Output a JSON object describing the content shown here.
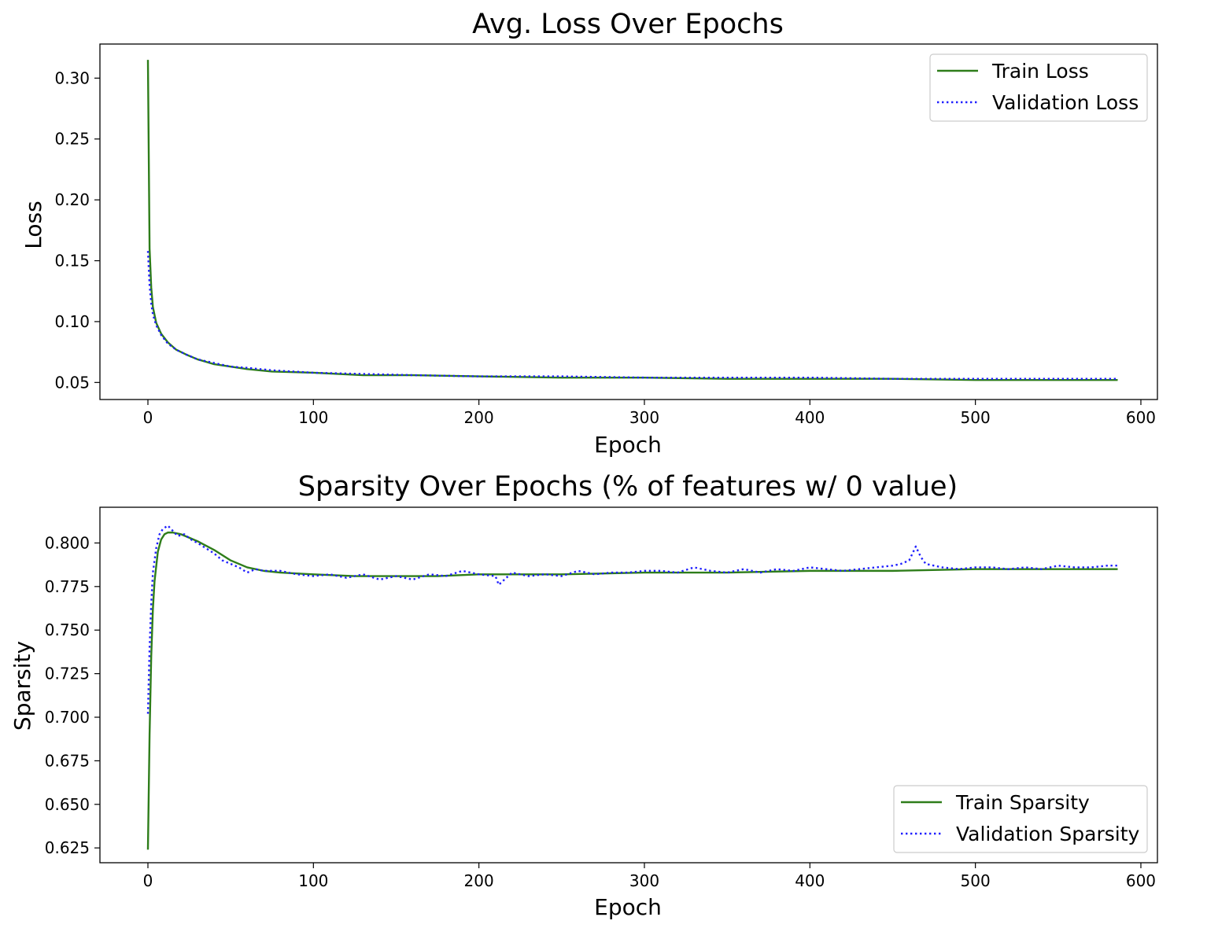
{
  "chart_data": [
    {
      "type": "line",
      "title": "Avg. Loss Over Epochs",
      "xlabel": "Epoch",
      "ylabel": "Loss",
      "xlim": [
        -29,
        610
      ],
      "ylim": [
        0.036,
        0.328
      ],
      "xticks": [
        0,
        100,
        200,
        300,
        400,
        500,
        600
      ],
      "yticks": [
        0.05,
        0.1,
        0.15,
        0.2,
        0.25,
        0.3
      ],
      "ytick_labels": [
        "0.05",
        "0.10",
        "0.15",
        "0.20",
        "0.25",
        "0.30"
      ],
      "legend_position": "upper right",
      "grid": false,
      "series": [
        {
          "name": "Train Loss",
          "style": "solid",
          "color": "#2e7d1a",
          "x": [
            0,
            1,
            2,
            3,
            5,
            8,
            12,
            17,
            23,
            30,
            40,
            50,
            60,
            75,
            100,
            130,
            160,
            200,
            250,
            300,
            350,
            400,
            450,
            500,
            550,
            586
          ],
          "y": [
            0.315,
            0.16,
            0.128,
            0.112,
            0.099,
            0.09,
            0.083,
            0.077,
            0.073,
            0.069,
            0.065,
            0.063,
            0.061,
            0.059,
            0.058,
            0.056,
            0.056,
            0.055,
            0.054,
            0.054,
            0.053,
            0.053,
            0.053,
            0.052,
            0.052,
            0.052
          ]
        },
        {
          "name": "Validation Loss",
          "style": "dotted",
          "color": "#1f1fff",
          "x": [
            0,
            1,
            2,
            3,
            5,
            8,
            12,
            17,
            23,
            30,
            40,
            50,
            60,
            75,
            100,
            130,
            160,
            200,
            250,
            300,
            350,
            400,
            450,
            500,
            550,
            586
          ],
          "y": [
            0.158,
            0.13,
            0.115,
            0.106,
            0.097,
            0.089,
            0.082,
            0.077,
            0.073,
            0.069,
            0.066,
            0.063,
            0.062,
            0.06,
            0.058,
            0.057,
            0.056,
            0.055,
            0.055,
            0.054,
            0.054,
            0.054,
            0.053,
            0.053,
            0.053,
            0.053
          ]
        }
      ]
    },
    {
      "type": "line",
      "title": "Sparsity Over Epochs (% of features w/ 0 value)",
      "xlabel": "Epoch",
      "ylabel": "Sparsity",
      "xlim": [
        -29,
        610
      ],
      "ylim": [
        0.6165,
        0.8205
      ],
      "xticks": [
        0,
        100,
        200,
        300,
        400,
        500,
        600
      ],
      "yticks": [
        0.625,
        0.65,
        0.675,
        0.7,
        0.725,
        0.75,
        0.775,
        0.8
      ],
      "ytick_labels": [
        "0.625",
        "0.650",
        "0.675",
        "0.700",
        "0.725",
        "0.750",
        "0.775",
        "0.800"
      ],
      "legend_position": "lower right",
      "grid": false,
      "series": [
        {
          "name": "Train Sparsity",
          "style": "solid",
          "color": "#2e7d1a",
          "x": [
            0,
            1,
            2,
            3,
            4,
            6,
            8,
            10,
            12,
            15,
            20,
            25,
            30,
            40,
            50,
            60,
            70,
            80,
            100,
            125,
            150,
            175,
            200,
            250,
            300,
            350,
            400,
            450,
            500,
            550,
            586
          ],
          "y": [
            0.624,
            0.69,
            0.735,
            0.762,
            0.778,
            0.795,
            0.802,
            0.805,
            0.806,
            0.806,
            0.805,
            0.803,
            0.801,
            0.796,
            0.79,
            0.786,
            0.784,
            0.783,
            0.782,
            0.781,
            0.781,
            0.781,
            0.782,
            0.782,
            0.783,
            0.783,
            0.784,
            0.784,
            0.785,
            0.785,
            0.785
          ]
        },
        {
          "name": "Validation Sparsity",
          "style": "dotted",
          "color": "#1f1fff",
          "x": [
            0,
            1,
            2,
            3,
            5,
            7,
            9,
            12,
            15,
            18,
            22,
            26,
            30,
            35,
            40,
            45,
            50,
            55,
            60,
            65,
            70,
            80,
            90,
            100,
            110,
            120,
            130,
            140,
            150,
            160,
            170,
            180,
            190,
            200,
            210,
            212,
            220,
            230,
            240,
            250,
            260,
            270,
            280,
            290,
            300,
            310,
            320,
            330,
            340,
            350,
            360,
            370,
            380,
            390,
            400,
            410,
            420,
            430,
            440,
            450,
            455,
            460,
            464,
            467,
            470,
            480,
            490,
            500,
            510,
            520,
            530,
            540,
            550,
            560,
            570,
            580,
            586
          ],
          "y": [
            0.702,
            0.74,
            0.765,
            0.783,
            0.797,
            0.805,
            0.808,
            0.81,
            0.807,
            0.804,
            0.805,
            0.802,
            0.8,
            0.797,
            0.794,
            0.79,
            0.788,
            0.786,
            0.783,
            0.785,
            0.784,
            0.784,
            0.782,
            0.781,
            0.782,
            0.78,
            0.782,
            0.779,
            0.781,
            0.779,
            0.782,
            0.781,
            0.784,
            0.782,
            0.781,
            0.776,
            0.783,
            0.781,
            0.782,
            0.781,
            0.784,
            0.782,
            0.783,
            0.783,
            0.784,
            0.784,
            0.783,
            0.786,
            0.784,
            0.783,
            0.785,
            0.783,
            0.785,
            0.784,
            0.786,
            0.785,
            0.784,
            0.785,
            0.786,
            0.787,
            0.788,
            0.79,
            0.798,
            0.792,
            0.788,
            0.786,
            0.785,
            0.786,
            0.786,
            0.785,
            0.786,
            0.785,
            0.787,
            0.786,
            0.786,
            0.787,
            0.787
          ]
        }
      ]
    }
  ]
}
